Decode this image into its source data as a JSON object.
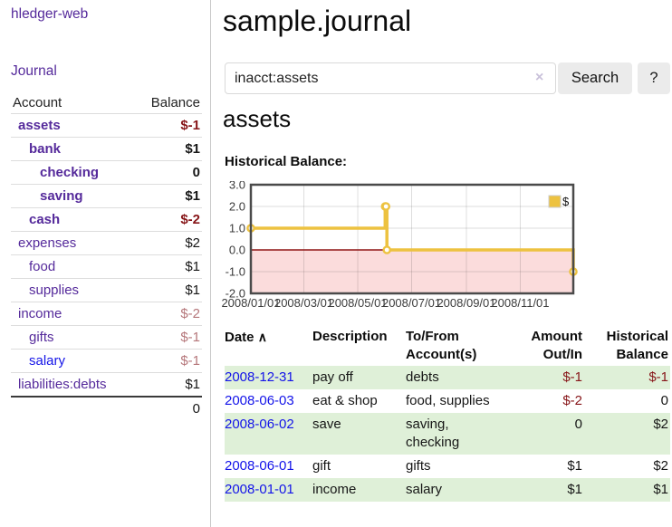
{
  "sidebar": {
    "brand": "hledger-web",
    "journal_link": "Journal",
    "table": {
      "header_account": "Account",
      "header_balance": "Balance",
      "rows": [
        {
          "name": "assets",
          "level": 0,
          "bold": true,
          "balance": "$-1",
          "neg": "strong"
        },
        {
          "name": "bank",
          "level": 1,
          "bold": true,
          "balance": "$1",
          "neg": "none"
        },
        {
          "name": "checking",
          "level": 2,
          "bold": true,
          "balance": "0",
          "neg": "none"
        },
        {
          "name": "saving",
          "level": 2,
          "bold": true,
          "balance": "$1",
          "neg": "none"
        },
        {
          "name": "cash",
          "level": 1,
          "bold": true,
          "balance": "$-2",
          "neg": "strong"
        },
        {
          "name": "expenses",
          "level": 0,
          "bold": false,
          "balance": "$2",
          "neg": "none"
        },
        {
          "name": "food",
          "level": 1,
          "bold": false,
          "balance": "$1",
          "neg": "none"
        },
        {
          "name": "supplies",
          "level": 1,
          "bold": false,
          "balance": "$1",
          "neg": "none"
        },
        {
          "name": "income",
          "level": 0,
          "bold": false,
          "balance": "$-2",
          "neg": "muted"
        },
        {
          "name": "gifts",
          "level": 1,
          "bold": false,
          "balance": "$-1",
          "neg": "muted"
        },
        {
          "name": "salary",
          "level": 1,
          "bold": false,
          "balance": "$-1",
          "neg": "muted",
          "blue": true
        },
        {
          "name": "liabilities:debts",
          "level": 0,
          "bold": false,
          "balance": "$1",
          "neg": "none"
        }
      ],
      "total": "0"
    }
  },
  "main": {
    "title": "sample.journal",
    "search": {
      "value": "inacct:assets",
      "clear_icon": "×",
      "search_label": "Search",
      "help_label": "?"
    },
    "account_heading": "assets",
    "chart_heading": "Historical Balance:"
  },
  "chart_data": {
    "type": "line",
    "step": true,
    "title": "Historical Balance:",
    "series": [
      {
        "name": "$",
        "color": "#edc240",
        "points": [
          [
            "2008-01-01",
            1
          ],
          [
            "2008-06-01",
            2
          ],
          [
            "2008-06-02",
            2
          ],
          [
            "2008-06-03",
            0
          ],
          [
            "2008-12-31",
            -1
          ]
        ]
      }
    ],
    "x_range": [
      "2008-01-01",
      "2008-12-31"
    ],
    "ylim": [
      -2,
      3
    ],
    "y_ticks": [
      3,
      2,
      1,
      0,
      -1,
      -2
    ],
    "x_ticks": [
      {
        "label": "2008/01/01",
        "date": "2008-01-01"
      },
      {
        "label": "2008/03/01",
        "date": "2008-03-01"
      },
      {
        "label": "2008/05/01",
        "date": "2008-05-01"
      },
      {
        "label": "2008/07/01",
        "date": "2008-07-01"
      },
      {
        "label": "2008/09/01",
        "date": "2008-09-01"
      },
      {
        "label": "2008/11/01",
        "date": "2008-11-01"
      }
    ],
    "legend": [
      {
        "label": "$",
        "color": "#edc240"
      }
    ],
    "legend_position": "top-right",
    "grid": true,
    "negative_fill": "#fbdcdc",
    "zero_line_color": "#8f1515",
    "grid_color": "rgba(0,0,0,0.13)",
    "border_color": "#4a4a4a",
    "axis_label_color": "#3c3c3c"
  },
  "register": {
    "headers": {
      "date": "Date",
      "sort_indicator": "∧",
      "description": "Description",
      "accounts": "To/From Account(s)",
      "amount": "Amount Out/In",
      "balance": "Historical Balance"
    },
    "rows": [
      {
        "date": "2008-12-31",
        "description": "pay off",
        "accounts": "debts",
        "amount": "$-1",
        "amount_neg": true,
        "balance": "$-1",
        "balance_neg": true
      },
      {
        "date": "2008-06-03",
        "description": "eat & shop",
        "accounts": "food, supplies",
        "amount": "$-2",
        "amount_neg": true,
        "balance": "0",
        "balance_neg": false
      },
      {
        "date": "2008-06-02",
        "description": "save",
        "accounts": "saving, checking",
        "amount": "0",
        "amount_neg": false,
        "balance": "$2",
        "balance_neg": false
      },
      {
        "date": "2008-06-01",
        "description": "gift",
        "accounts": "gifts",
        "amount": "$1",
        "amount_neg": false,
        "balance": "$2",
        "balance_neg": false
      },
      {
        "date": "2008-01-01",
        "description": "income",
        "accounts": "salary",
        "amount": "$1",
        "amount_neg": false,
        "balance": "$1",
        "balance_neg": false
      }
    ]
  },
  "colors": {
    "link_purple": "#552a9b",
    "link_blue": "#1414e8",
    "negative_strong": "#871619",
    "negative_muted": "#b5767a",
    "row_stripe_green": "#dff0d8",
    "series_gold": "#edc240"
  }
}
